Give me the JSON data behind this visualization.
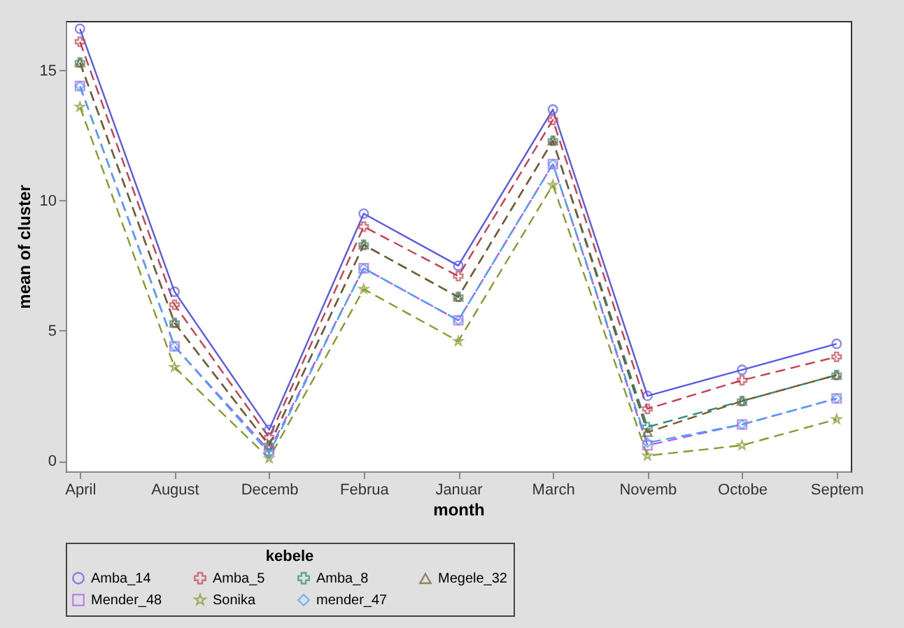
{
  "chart_data": {
    "type": "line",
    "xlabel": "month",
    "ylabel": "mean of cluster",
    "legend_title": "kebele",
    "legend": "bottom",
    "grid": false,
    "categories": [
      "April",
      "August",
      "Decemb",
      "Februa",
      "Januar",
      "March",
      "Novemb",
      "Octobe",
      "Septem"
    ],
    "ylim": [
      -0.4,
      16.9
    ],
    "yticks": [
      0,
      5,
      10,
      15
    ],
    "series": [
      {
        "name": "Amba_14",
        "color": "#5a5ae8",
        "marker": "circle",
        "line_style": "solid",
        "values": [
          16.6,
          6.5,
          1.2,
          9.5,
          7.5,
          13.5,
          2.5,
          3.5,
          4.5
        ]
      },
      {
        "name": "Amba_5",
        "color": "#c8404e",
        "marker": "cross",
        "line_style": "dashed",
        "values": [
          16.1,
          6.0,
          0.9,
          9.0,
          7.1,
          13.1,
          2.0,
          3.1,
          4.0
        ]
      },
      {
        "name": "Amba_8",
        "color": "#2e8a7a",
        "marker": "cross",
        "line_style": "dashed",
        "values": [
          15.3,
          5.3,
          0.6,
          8.3,
          6.3,
          12.3,
          1.3,
          2.3,
          3.3
        ]
      },
      {
        "name": "Megele_32",
        "color": "#7a5a2e",
        "marker": "triangle",
        "line_style": "dashed",
        "values": [
          15.3,
          5.3,
          0.6,
          8.3,
          6.3,
          12.3,
          1.1,
          2.3,
          3.3
        ]
      },
      {
        "name": "Mender_48",
        "color": "#b060e8",
        "marker": "square",
        "line_style": "dashed",
        "values": [
          14.4,
          4.4,
          0.4,
          7.4,
          5.4,
          11.4,
          0.6,
          1.4,
          2.4
        ]
      },
      {
        "name": "Sonika",
        "color": "#8a9a30",
        "marker": "star",
        "line_style": "dashed",
        "values": [
          13.6,
          3.6,
          0.1,
          6.6,
          4.6,
          10.6,
          0.2,
          0.6,
          1.6
        ]
      },
      {
        "name": "mender_47",
        "color": "#4aa0ff",
        "marker": "diamond",
        "line_style": "dashed",
        "values": [
          14.4,
          4.4,
          0.3,
          7.4,
          5.4,
          11.4,
          0.7,
          1.4,
          2.4
        ]
      }
    ]
  }
}
